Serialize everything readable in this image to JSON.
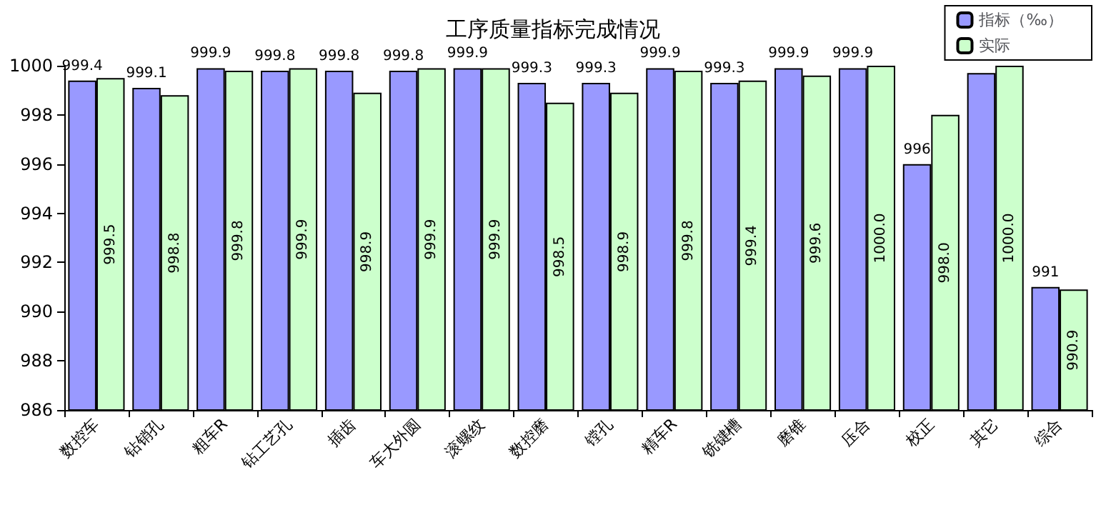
{
  "chart_data": {
    "type": "bar",
    "title": "工序质量指标完成情况",
    "categories": [
      "数控车",
      "钻销孔",
      "粗车R",
      "钻工艺孔",
      "插齿",
      "车大外圆",
      "滚螺纹",
      "数控磨",
      "镗孔",
      "精车R",
      "铣键槽",
      "磨锥",
      "压合",
      "校正",
      "其它",
      "综合"
    ],
    "series": [
      {
        "name": "指标（‰）",
        "color": "#9999ff",
        "values": [
          999.4,
          999.1,
          999.9,
          999.8,
          999.8,
          999.8,
          999.9,
          999.3,
          999.3,
          999.9,
          999.3,
          999.9,
          999.9,
          996,
          999.7,
          991
        ],
        "value_labels": [
          "999.4",
          "999.1",
          "999.9",
          "999.8",
          "999.8",
          "999.8",
          "999.9",
          "999.3",
          "999.3",
          "999.9",
          "999.3",
          "999.9",
          "999.9",
          "996",
          null,
          "991"
        ]
      },
      {
        "name": "实际",
        "color": "#ccffcc",
        "values": [
          999.5,
          998.8,
          999.8,
          999.9,
          998.9,
          999.9,
          999.9,
          998.5,
          998.9,
          999.8,
          999.4,
          999.6,
          1000.0,
          998.0,
          1000.0,
          990.9
        ],
        "value_labels": [
          "999.5",
          "998.8",
          "999.8",
          "999.9",
          "998.9",
          "999.9",
          "999.9",
          "998.5",
          "998.9",
          "999.8",
          "999.4",
          "999.6",
          "1000.0",
          "998.0",
          "1000.0",
          "990.9"
        ]
      }
    ],
    "ylim": [
      986,
      1000
    ],
    "yticks": [
      986,
      988,
      990,
      992,
      994,
      996,
      998,
      1000
    ],
    "grid": false,
    "legend": "top right"
  }
}
